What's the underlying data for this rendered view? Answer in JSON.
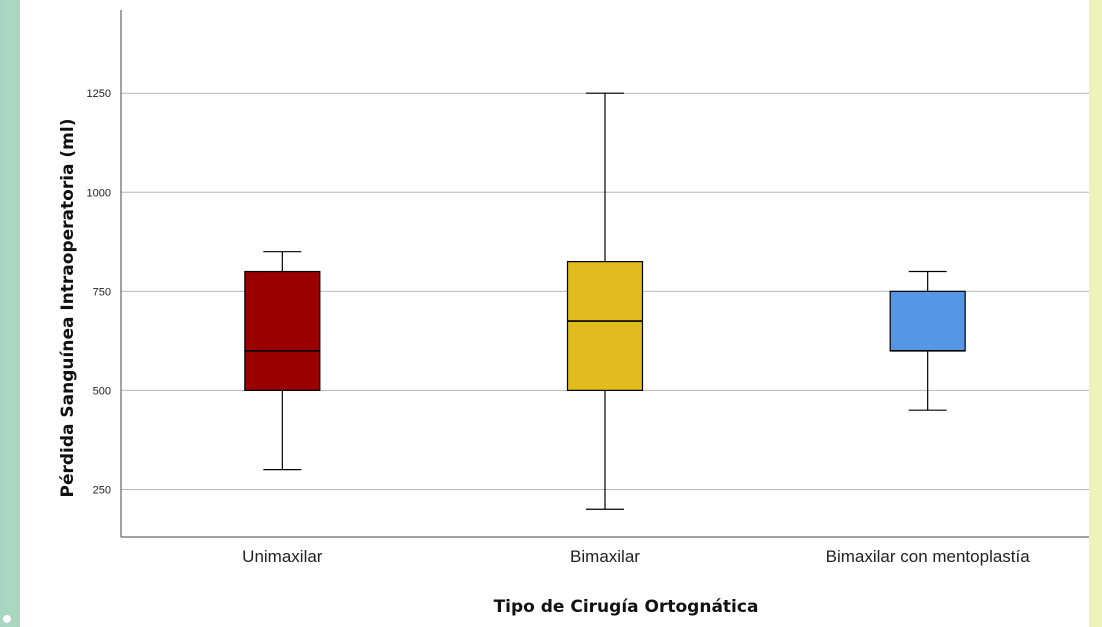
{
  "chart_data": {
    "type": "box",
    "xlabel": "Tipo de Cirugía Ortognática",
    "ylabel": "Pérdida Sanguínea Intraoperatoria (ml)",
    "ylim": [
      130,
      1460
    ],
    "yticks": [
      250,
      500,
      750,
      1000,
      1250
    ],
    "grid": true,
    "categories": [
      "Unimaxilar",
      "Bimaxilar",
      "Bimaxilar con mentoplastía"
    ],
    "boxes": [
      {
        "category": "Unimaxilar",
        "min": 300,
        "q1": 500,
        "median": 600,
        "q3": 800,
        "max": 850,
        "color": "#9b0000"
      },
      {
        "category": "Bimaxilar",
        "min": 200,
        "q1": 500,
        "median": 675,
        "q3": 825,
        "max": 1250,
        "color": "#e0bc1f"
      },
      {
        "category": "Bimaxilar con mentoplastía",
        "min": 450,
        "q1": 600,
        "median": 600,
        "q3": 750,
        "max": 800,
        "color": "#5596e6"
      }
    ]
  }
}
